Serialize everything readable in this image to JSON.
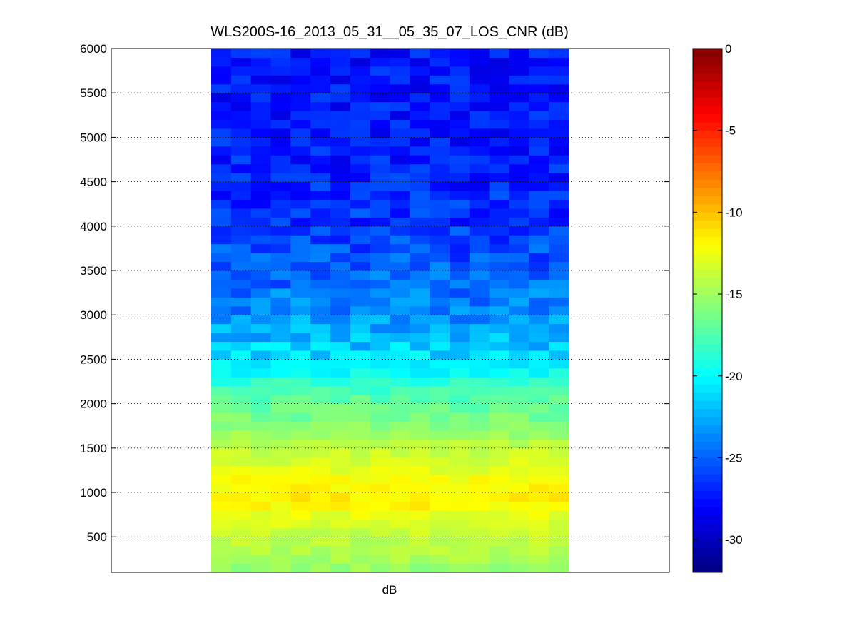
{
  "chart_data": {
    "type": "heatmap",
    "title": "WLS200S-16_2013_05_31__05_35_07_LOS_CNR (dB)",
    "xlabel": "dB",
    "ylabel": "",
    "ylim": [
      100,
      6000
    ],
    "y_ticks": [
      500,
      1000,
      1500,
      2000,
      2500,
      3000,
      3500,
      4000,
      4500,
      5000,
      5500,
      6000
    ],
    "y_grid": "dotted",
    "colormap": "jet",
    "colorbar": {
      "placement": "right",
      "range": [
        -32,
        0
      ],
      "ticks": [
        0,
        -5,
        -10,
        -15,
        -20,
        -25,
        -30
      ]
    },
    "columns": 18,
    "profile": [
      {
        "range": 100,
        "cnr": -15.5
      },
      {
        "range": 300,
        "cnr": -14.5
      },
      {
        "range": 500,
        "cnr": -14.0
      },
      {
        "range": 700,
        "cnr": -13.0
      },
      {
        "range": 900,
        "cnr": -11.5
      },
      {
        "range": 1100,
        "cnr": -12.0
      },
      {
        "range": 1300,
        "cnr": -13.0
      },
      {
        "range": 1500,
        "cnr": -14.0
      },
      {
        "range": 1700,
        "cnr": -15.5
      },
      {
        "range": 1900,
        "cnr": -16.5
      },
      {
        "range": 2100,
        "cnr": -17.5
      },
      {
        "range": 2250,
        "cnr": -18.5
      },
      {
        "range": 2350,
        "cnr": -19.8
      },
      {
        "range": 2500,
        "cnr": -20.8
      },
      {
        "range": 2700,
        "cnr": -22.0
      },
      {
        "range": 3000,
        "cnr": -23.5
      },
      {
        "range": 3500,
        "cnr": -25.0
      },
      {
        "range": 4000,
        "cnr": -26.3
      },
      {
        "range": 4500,
        "cnr": -27.0
      },
      {
        "range": 5000,
        "cnr": -27.3
      },
      {
        "range": 5500,
        "cnr": -27.4
      },
      {
        "range": 6000,
        "cnr": -27.5
      }
    ]
  }
}
